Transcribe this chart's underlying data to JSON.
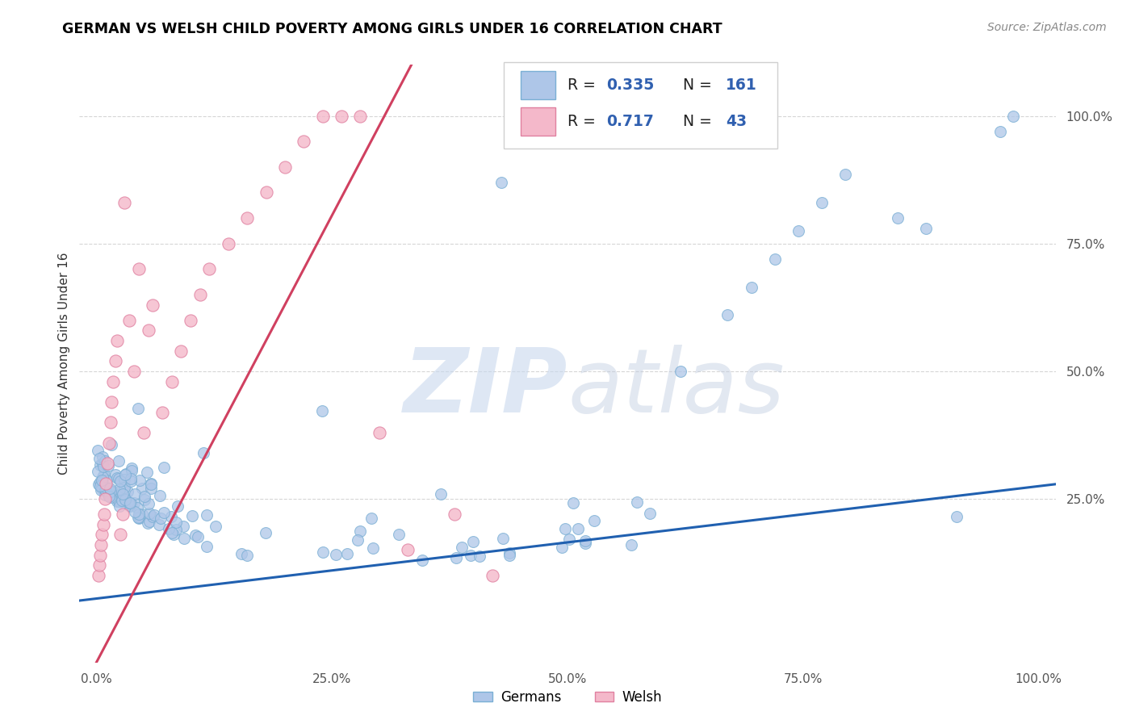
{
  "title": "GERMAN VS WELSH CHILD POVERTY AMONG GIRLS UNDER 16 CORRELATION CHART",
  "source": "Source: ZipAtlas.com",
  "ylabel": "Child Poverty Among Girls Under 16",
  "german_color": "#aec6e8",
  "german_edge": "#7aafd4",
  "welsh_color": "#f4b8ca",
  "welsh_edge": "#e080a0",
  "trendline_german_color": "#2060b0",
  "trendline_welsh_color": "#d04060",
  "xtick_labels": [
    "0.0%",
    "25.0%",
    "50.0%",
    "75.0%",
    "100.0%"
  ],
  "xtick_vals": [
    0.0,
    0.25,
    0.5,
    0.75,
    1.0
  ],
  "ytick_labels_right": [
    "100.0%",
    "75.0%",
    "50.0%",
    "25.0%"
  ],
  "ytick_vals_right": [
    1.0,
    0.75,
    0.5,
    0.25
  ],
  "grid_color": "#cccccc",
  "background_color": "#ffffff",
  "R_german": "0.335",
  "N_german": "161",
  "R_welsh": "0.717",
  "N_welsh": "43",
  "legend_color": "#3060b0",
  "N_color": "#3060b0"
}
